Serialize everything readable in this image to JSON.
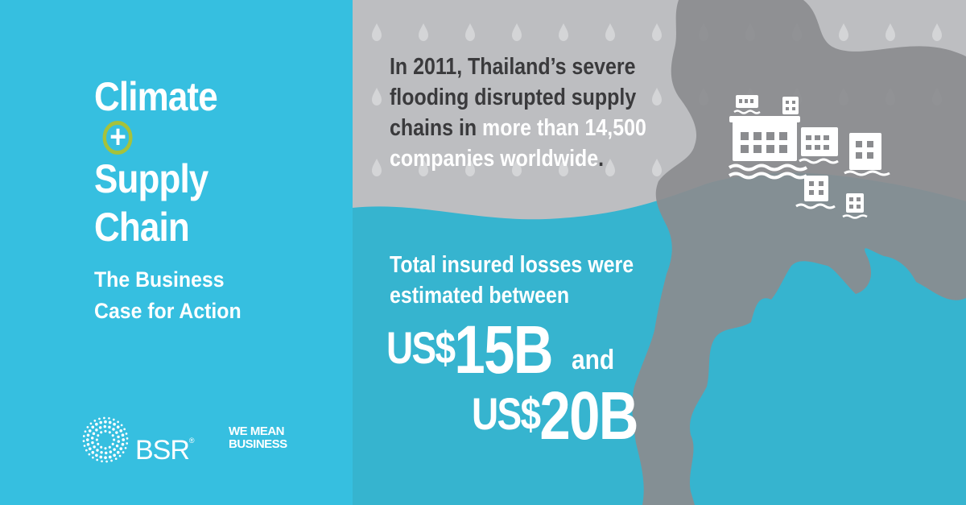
{
  "title": {
    "line1": "Climate",
    "line2": "Supply",
    "line3": "Chain"
  },
  "plus_symbol": "+",
  "subtitle": {
    "line1": "The Business",
    "line2": "Case for Action"
  },
  "fact1": {
    "line1": "In 2011, Thailand’s severe",
    "line2": "flooding disrupted supply",
    "line3_a": "chains in ",
    "line3_b": "more than 14,500",
    "line4_a": "companies worldwide",
    "line4_b": "."
  },
  "fact2": {
    "line1": "Total insured losses were",
    "line2": "estimated between",
    "amount1_currency": "US$",
    "amount1_value": "15B",
    "connector": "and",
    "amount2_currency": "US$",
    "amount2_value": "20B"
  },
  "logos": {
    "bsr": "BSR",
    "bsr_mark": "®",
    "wmb_line1": "WE MEAN",
    "wmb_line2": "BUSINESS"
  },
  "colors": {
    "left_panel": "#36bfe0",
    "sky": "#bdbec1",
    "water": "#36b4cf",
    "land": "#8b8c8f",
    "accent_ring": "#a6c23b",
    "dark_text": "#3a3a3c"
  },
  "icons": [
    "raindrop-icon",
    "flooded-building-icon",
    "bsr-burst-logo"
  ]
}
